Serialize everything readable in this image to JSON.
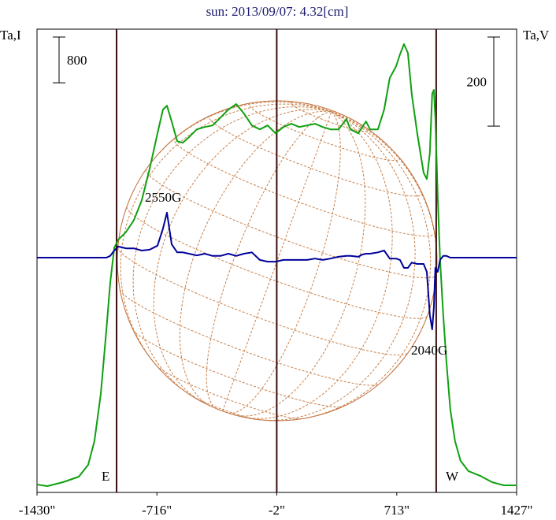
{
  "chart_data": {
    "type": "line",
    "title": "sun: 2013/09/07: 4.32[cm]",
    "y_label": "Ta,I",
    "y2_label": "Ta,V",
    "x": [
      -1430,
      -1369,
      -1275,
      -1181,
      -1125,
      -1088,
      -1050,
      -1017,
      -994,
      -970,
      -947,
      -900,
      -853,
      -806,
      -759,
      -712,
      -680,
      -656,
      -628,
      -595,
      -562,
      -525,
      -478,
      -431,
      -384,
      -337,
      -290,
      -243,
      -197,
      -150,
      -103,
      -56,
      -9,
      38,
      85,
      132,
      179,
      226,
      272,
      319,
      366,
      413,
      437,
      484,
      507,
      530,
      554,
      601,
      638,
      671,
      709,
      732,
      756,
      779,
      802,
      835,
      873,
      892,
      910,
      924,
      934,
      943,
      957,
      971,
      990,
      1009,
      1032,
      1060,
      1093,
      1140,
      1210,
      1281,
      1351,
      1427
    ],
    "series": [
      {
        "color": "#10a010",
        "values": [
          138,
          110,
          179,
          276,
          483,
          897,
          1725,
          2829,
          3657,
          4278,
          4416,
          4554,
          4761,
          5106,
          5658,
          6279,
          6693,
          6762,
          6486,
          6141,
          6113,
          6210,
          6348,
          6389,
          6417,
          6555,
          6693,
          6790,
          6624,
          6417,
          6348,
          6417,
          6279,
          6389,
          6445,
          6389,
          6417,
          6445,
          6389,
          6348,
          6348,
          6527,
          6348,
          6279,
          6389,
          6486,
          6348,
          6348,
          6693,
          7245,
          7452,
          7659,
          7838,
          7687,
          6969,
          6279,
          5589,
          5479,
          5934,
          6969,
          7038,
          6555,
          5175,
          4071,
          3105,
          2277,
          1449,
          897,
          552,
          373,
          290,
          179,
          124,
          124
        ]
      },
      {
        "color": "#00009a",
        "axis": "y2",
        "values": [
          0,
          0,
          0,
          0,
          0,
          0,
          0,
          0,
          4,
          16,
          25,
          21,
          21,
          16,
          18,
          27,
          65,
          101,
          30,
          12,
          12,
          9,
          5,
          9,
          4,
          4,
          9,
          4,
          9,
          12,
          -5,
          -9,
          -9,
          -5,
          -5,
          -5,
          -5,
          -2,
          -5,
          -2,
          2,
          4,
          4,
          2,
          7,
          9,
          9,
          12,
          16,
          -2,
          -2,
          -5,
          -23,
          -23,
          -11,
          -14,
          -14,
          -32,
          -129,
          -161,
          -112,
          -23,
          -32,
          -5,
          4,
          4,
          0,
          0,
          0,
          0,
          0,
          0,
          0,
          0
        ]
      }
    ],
    "xlim": [
      -1430,
      1427
    ],
    "xticks": [
      {
        "value": -1430,
        "label": "-1430\""
      },
      {
        "value": -716,
        "label": "-716\""
      },
      {
        "value": -2,
        "label": "-2\""
      },
      {
        "value": 713,
        "label": "713\""
      },
      {
        "value": 1427,
        "label": "1427\""
      }
    ],
    "ylim": [
      0,
      8100
    ],
    "y2lim": [
      -527,
      513
    ],
    "reference_lines": [
      -956,
      -2,
      948
    ],
    "scale_bars": [
      {
        "value": 800,
        "axis": "y"
      },
      {
        "value": 200,
        "axis": "y2"
      }
    ],
    "annotations": [
      "2550G",
      "2040G",
      "E",
      "W"
    ]
  }
}
